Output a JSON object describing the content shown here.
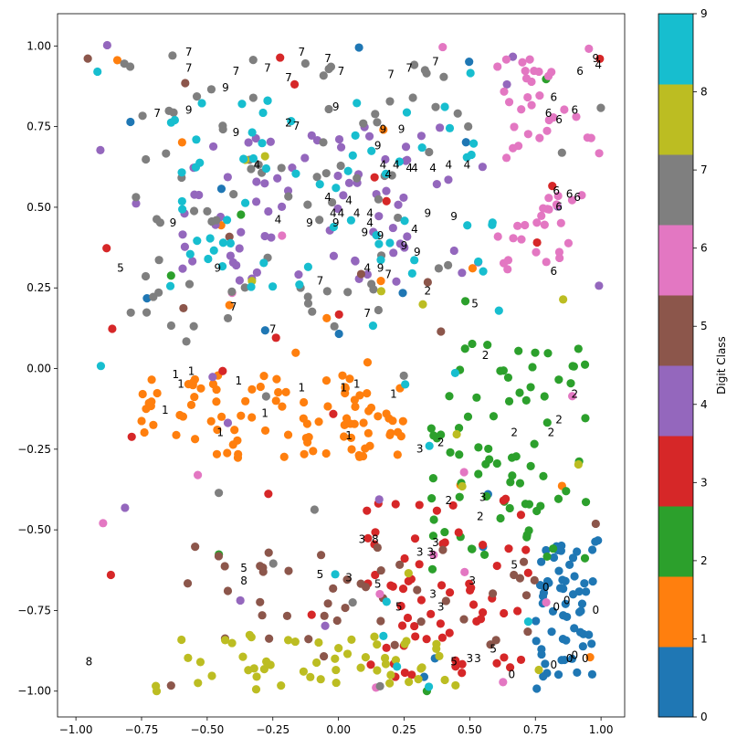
{
  "chart_data": {
    "type": "scatter",
    "title": "",
    "xlabel": "",
    "ylabel": "",
    "xlim": [
      -1.07,
      1.09
    ],
    "ylim": [
      -1.08,
      1.1
    ],
    "xticks": [
      -1.0,
      -0.75,
      -0.5,
      -0.25,
      0.0,
      0.25,
      0.5,
      0.75,
      1.0
    ],
    "xtick_labels": [
      "−1.00",
      "−0.75",
      "−0.50",
      "−0.25",
      "0.00",
      "0.25",
      "0.50",
      "0.75",
      "1.00"
    ],
    "yticks": [
      1.0,
      0.75,
      0.5,
      0.25,
      0.0,
      -0.25,
      -0.5,
      -0.75,
      -1.0
    ],
    "ytick_labels": [
      "1.00",
      "0.75",
      "0.50",
      "0.25",
      "0.00",
      "−0.25",
      "−0.50",
      "−0.75",
      "−1.00"
    ],
    "colorbar": {
      "label": "Digit Class",
      "ticks": [
        "0",
        "1",
        "2",
        "3",
        "4",
        "5",
        "6",
        "7",
        "8",
        "9"
      ],
      "colors": [
        "#1f77b4",
        "#ff7f0e",
        "#2ca02c",
        "#d62728",
        "#9467bd",
        "#8c564b",
        "#e377c2",
        "#7f7f7f",
        "#bcbd22",
        "#17becf"
      ]
    },
    "clusters": [
      {
        "digit": 0,
        "x_range": [
          0.75,
          1.0
        ],
        "y_range": [
          -1.0,
          -0.53
        ],
        "n": 75
      },
      {
        "digit": 1,
        "x_range": [
          -0.75,
          0.25
        ],
        "y_range": [
          -0.28,
          -0.02
        ],
        "n": 110
      },
      {
        "digit": 2,
        "x_range": [
          0.35,
          0.95
        ],
        "y_range": [
          -0.6,
          0.08
        ],
        "n": 85
      },
      {
        "digit": 3,
        "x_range": [
          0.1,
          0.75
        ],
        "y_range": [
          -0.95,
          -0.4
        ],
        "n": 85
      },
      {
        "digit": 4,
        "x_range": [
          -0.6,
          0.55
        ],
        "y_range": [
          0.25,
          0.75
        ],
        "n": 90
      },
      {
        "digit": 5,
        "x_range": [
          -0.6,
          0.75
        ],
        "y_range": [
          -0.9,
          -0.55
        ],
        "n": 55
      },
      {
        "digit": 6,
        "x_range": [
          0.6,
          1.0
        ],
        "y_range": [
          0.28,
          0.98
        ],
        "n": 70
      },
      {
        "digit": 7,
        "x_range": [
          -0.8,
          0.5
        ],
        "y_range": [
          0.1,
          0.99
        ],
        "n": 95
      },
      {
        "digit": 8,
        "x_range": [
          -0.7,
          0.45
        ],
        "y_range": [
          -1.0,
          -0.82
        ],
        "n": 65
      },
      {
        "digit": 9,
        "x_range": [
          -0.65,
          0.6
        ],
        "y_range": [
          0.25,
          0.85
        ],
        "n": 80
      }
    ],
    "annotations": [
      {
        "text": "7",
        "x": -0.57,
        "y": 0.97
      },
      {
        "text": "7",
        "x": -0.57,
        "y": 0.92
      },
      {
        "text": "7",
        "x": -0.39,
        "y": 0.91
      },
      {
        "text": "7",
        "x": -0.27,
        "y": 0.92
      },
      {
        "text": "7",
        "x": -0.19,
        "y": 0.89
      },
      {
        "text": "7",
        "x": -0.14,
        "y": 0.97
      },
      {
        "text": "7",
        "x": -0.04,
        "y": 0.95
      },
      {
        "text": "7",
        "x": 0.01,
        "y": 0.91
      },
      {
        "text": "7",
        "x": 0.2,
        "y": 0.9
      },
      {
        "text": "7",
        "x": 0.27,
        "y": 0.92
      },
      {
        "text": "7",
        "x": 0.37,
        "y": 0.94
      },
      {
        "text": "7",
        "x": -0.69,
        "y": 0.78
      },
      {
        "text": "7",
        "x": -0.16,
        "y": 0.74
      },
      {
        "text": "7",
        "x": -0.07,
        "y": 0.26
      },
      {
        "text": "7",
        "x": -0.4,
        "y": 0.18
      },
      {
        "text": "7",
        "x": -0.25,
        "y": 0.11
      },
      {
        "text": "7",
        "x": 0.11,
        "y": 0.16
      },
      {
        "text": "7",
        "x": 0.19,
        "y": 0.28
      },
      {
        "text": "9",
        "x": 0.98,
        "y": 0.95
      },
      {
        "text": "4",
        "x": 0.99,
        "y": 0.93
      },
      {
        "text": "9",
        "x": -0.43,
        "y": 0.86
      },
      {
        "text": "9",
        "x": -0.57,
        "y": 0.79
      },
      {
        "text": "9",
        "x": -0.39,
        "y": 0.72
      },
      {
        "text": "2",
        "x": -0.19,
        "y": 0.75
      },
      {
        "text": "9",
        "x": -0.01,
        "y": 0.8
      },
      {
        "text": "9",
        "x": 0.17,
        "y": 0.73
      },
      {
        "text": "9",
        "x": 0.24,
        "y": 0.73
      },
      {
        "text": "9",
        "x": 0.15,
        "y": 0.68
      },
      {
        "text": "6",
        "x": 0.92,
        "y": 0.91
      },
      {
        "text": "6",
        "x": 0.82,
        "y": 0.83
      },
      {
        "text": "6",
        "x": 0.8,
        "y": 0.78
      },
      {
        "text": "6",
        "x": 0.84,
        "y": 0.76
      },
      {
        "text": "6",
        "x": 0.9,
        "y": 0.79
      },
      {
        "text": "6",
        "x": 0.83,
        "y": 0.54
      },
      {
        "text": "6",
        "x": 0.88,
        "y": 0.53
      },
      {
        "text": "6",
        "x": 0.91,
        "y": 0.52
      },
      {
        "text": "6",
        "x": 0.84,
        "y": 0.49
      },
      {
        "text": "6",
        "x": 0.82,
        "y": 0.29
      },
      {
        "text": "4",
        "x": -0.31,
        "y": 0.62
      },
      {
        "text": "4",
        "x": 0.17,
        "y": 0.62
      },
      {
        "text": "4",
        "x": 0.22,
        "y": 0.62
      },
      {
        "text": "4",
        "x": 0.27,
        "y": 0.61
      },
      {
        "text": "4",
        "x": 0.29,
        "y": 0.61
      },
      {
        "text": "4",
        "x": 0.36,
        "y": 0.61
      },
      {
        "text": "4",
        "x": 0.42,
        "y": 0.62
      },
      {
        "text": "4",
        "x": 0.49,
        "y": 0.62
      },
      {
        "text": "4",
        "x": 0.19,
        "y": 0.59
      },
      {
        "text": "4",
        "x": -0.04,
        "y": 0.52
      },
      {
        "text": "4",
        "x": 0.04,
        "y": 0.51
      },
      {
        "text": "4",
        "x": 0.01,
        "y": 0.47
      },
      {
        "text": "4",
        "x": -0.02,
        "y": 0.47
      },
      {
        "text": "4",
        "x": 0.07,
        "y": 0.47
      },
      {
        "text": "4",
        "x": 0.12,
        "y": 0.47
      },
      {
        "text": "4",
        "x": -0.23,
        "y": 0.45
      },
      {
        "text": "4",
        "x": 0.12,
        "y": 0.44
      },
      {
        "text": "4",
        "x": 0.29,
        "y": 0.42
      },
      {
        "text": "4",
        "x": 0.11,
        "y": 0.3
      },
      {
        "text": "9",
        "x": -0.63,
        "y": 0.44
      },
      {
        "text": "9",
        "x": -0.11,
        "y": 0.44
      },
      {
        "text": "9",
        "x": -0.01,
        "y": 0.44
      },
      {
        "text": "9",
        "x": 0.34,
        "y": 0.47
      },
      {
        "text": "9",
        "x": 0.44,
        "y": 0.46
      },
      {
        "text": "9",
        "x": 0.1,
        "y": 0.41
      },
      {
        "text": "9",
        "x": 0.16,
        "y": 0.4
      },
      {
        "text": "9",
        "x": 0.25,
        "y": 0.37
      },
      {
        "text": "9",
        "x": 0.3,
        "y": 0.35
      },
      {
        "text": "9",
        "x": -0.46,
        "y": 0.3
      },
      {
        "text": "9",
        "x": 0.16,
        "y": 0.3
      },
      {
        "text": "5",
        "x": -0.83,
        "y": 0.3
      },
      {
        "text": "5",
        "x": 0.52,
        "y": 0.19
      },
      {
        "text": "2",
        "x": 0.34,
        "y": 0.23
      },
      {
        "text": "2",
        "x": 0.56,
        "y": 0.03
      },
      {
        "text": "2",
        "x": 0.9,
        "y": -0.09
      },
      {
        "text": "2",
        "x": 0.84,
        "y": -0.17
      },
      {
        "text": "2",
        "x": 0.67,
        "y": -0.21
      },
      {
        "text": "2",
        "x": 0.81,
        "y": -0.21
      },
      {
        "text": "2",
        "x": 0.39,
        "y": -0.24
      },
      {
        "text": "2",
        "x": 0.42,
        "y": -0.42
      },
      {
        "text": "2",
        "x": 0.54,
        "y": -0.47
      },
      {
        "text": "1",
        "x": -0.62,
        "y": -0.03
      },
      {
        "text": "1",
        "x": -0.56,
        "y": -0.02
      },
      {
        "text": "1",
        "x": -0.6,
        "y": -0.06
      },
      {
        "text": "1",
        "x": -0.38,
        "y": -0.05
      },
      {
        "text": "1",
        "x": -0.14,
        "y": -0.07
      },
      {
        "text": "1",
        "x": 0.02,
        "y": -0.07
      },
      {
        "text": "1",
        "x": 0.07,
        "y": -0.06
      },
      {
        "text": "1",
        "x": 0.21,
        "y": -0.09
      },
      {
        "text": "1",
        "x": -0.66,
        "y": -0.14
      },
      {
        "text": "1",
        "x": -0.28,
        "y": -0.15
      },
      {
        "text": "1",
        "x": -0.45,
        "y": -0.21
      },
      {
        "text": "1",
        "x": 0.04,
        "y": -0.22
      },
      {
        "text": "3",
        "x": 0.31,
        "y": -0.26
      },
      {
        "text": "3",
        "x": 0.55,
        "y": -0.41
      },
      {
        "text": "3",
        "x": 0.09,
        "y": -0.54
      },
      {
        "text": "8",
        "x": 0.14,
        "y": -0.54
      },
      {
        "text": "3",
        "x": 0.37,
        "y": -0.55
      },
      {
        "text": "3",
        "x": 0.31,
        "y": -0.58
      },
      {
        "text": "3",
        "x": 0.35,
        "y": -0.58
      },
      {
        "text": "3",
        "x": 0.36,
        "y": -0.59
      },
      {
        "text": "3",
        "x": 0.51,
        "y": -0.67
      },
      {
        "text": "3",
        "x": 0.36,
        "y": -0.71
      },
      {
        "text": "3",
        "x": 0.39,
        "y": -0.75
      },
      {
        "text": "3",
        "x": 0.5,
        "y": -0.91
      },
      {
        "text": "3",
        "x": 0.53,
        "y": -0.91
      },
      {
        "text": "5",
        "x": -0.36,
        "y": -0.63
      },
      {
        "text": "5",
        "x": -0.07,
        "y": -0.65
      },
      {
        "text": "5",
        "x": 0.15,
        "y": -0.68
      },
      {
        "text": "5",
        "x": 0.23,
        "y": -0.75
      },
      {
        "text": "5",
        "x": 0.44,
        "y": -0.92
      },
      {
        "text": "5",
        "x": 0.59,
        "y": -0.88
      },
      {
        "text": "5",
        "x": 0.67,
        "y": -0.62
      },
      {
        "text": "3",
        "x": 0.04,
        "y": -0.66
      },
      {
        "text": "8",
        "x": -0.36,
        "y": -0.67
      },
      {
        "text": "8",
        "x": -0.95,
        "y": -0.92
      },
      {
        "text": "0",
        "x": 0.79,
        "y": -0.69
      },
      {
        "text": "0",
        "x": 0.83,
        "y": -0.75
      },
      {
        "text": "0",
        "x": 0.87,
        "y": -0.73
      },
      {
        "text": "0",
        "x": 0.98,
        "y": -0.76
      },
      {
        "text": "0",
        "x": 0.82,
        "y": -0.93
      },
      {
        "text": "0",
        "x": 0.88,
        "y": -0.91
      },
      {
        "text": "0",
        "x": 0.9,
        "y": -0.9
      },
      {
        "text": "0",
        "x": 0.94,
        "y": -0.91
      },
      {
        "text": "0",
        "x": 0.66,
        "y": -0.96
      }
    ]
  }
}
